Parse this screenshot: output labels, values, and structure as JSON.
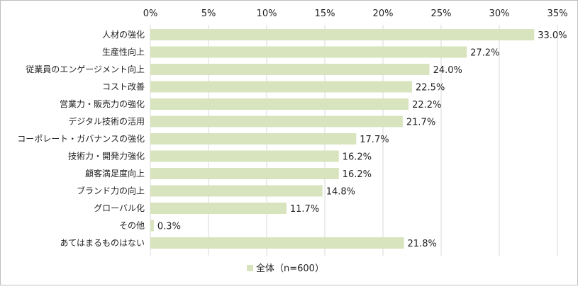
{
  "chart_data": {
    "type": "bar",
    "orientation": "horizontal",
    "categories": [
      "人材の強化",
      "生産性向上",
      "従業員のエンゲージメント向上",
      "コスト改善",
      "営業力・販売力の強化",
      "デジタル技術の活用",
      "コーポレート・ガバナンスの強化",
      "技術力・開発力強化",
      "顧客満足度向上",
      "ブランド力の向上",
      "グローバル化",
      "その他",
      "あてはまるものはない"
    ],
    "series": [
      {
        "name": "全体（n=600）",
        "values": [
          33.0,
          27.2,
          24.0,
          22.5,
          22.2,
          21.7,
          17.7,
          16.2,
          16.2,
          14.8,
          11.7,
          0.3,
          21.8
        ],
        "color": "#d7e4bd"
      }
    ],
    "value_labels": [
      "33.0%",
      "27.2%",
      "24.0%",
      "22.5%",
      "22.2%",
      "21.7%",
      "17.7%",
      "16.2%",
      "16.2%",
      "14.8%",
      "11.7%",
      "0.3%",
      "21.8%"
    ],
    "x_ticks": [
      0,
      5,
      10,
      15,
      20,
      25,
      30,
      35
    ],
    "x_tick_labels": [
      "0%",
      "5%",
      "10%",
      "15%",
      "20%",
      "25%",
      "30%",
      "35%"
    ],
    "xlim": [
      0,
      35
    ],
    "grid": true,
    "gridline_color": "#d9d9d9",
    "legend_position": "bottom",
    "legend_label": "全体（n=600）"
  }
}
